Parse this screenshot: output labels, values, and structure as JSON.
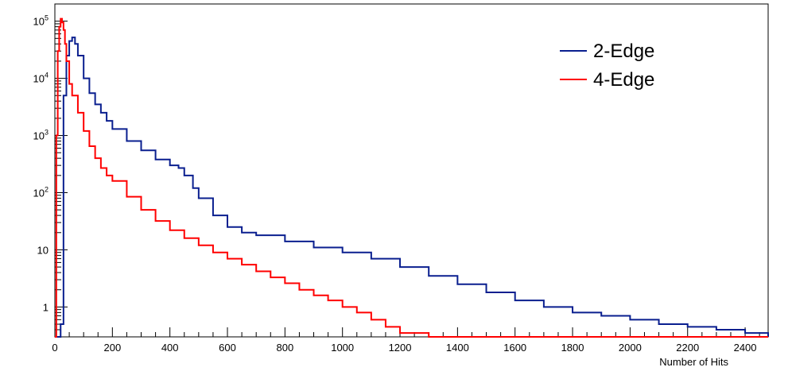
{
  "chart_data": {
    "type": "line",
    "title": "",
    "xlabel": "Number of Hits",
    "ylabel": "",
    "xlim": [
      0,
      2480
    ],
    "ylim": [
      0.3,
      200000
    ],
    "y_scale": "log",
    "grid": false,
    "legend_position": "top-right",
    "x_tick_labels": [
      "0",
      "200",
      "400",
      "600",
      "800",
      "1000",
      "1200",
      "1400",
      "1600",
      "1800",
      "2000",
      "2200",
      "2400"
    ],
    "y_tick_labels": [
      {
        "base": "10",
        "exp": "5",
        "value": 100000
      },
      {
        "base": "10",
        "exp": "4",
        "value": 10000
      },
      {
        "base": "10",
        "exp": "3",
        "value": 1000
      },
      {
        "base": "10",
        "exp": "2",
        "value": 100
      },
      {
        "base": "10",
        "exp": "",
        "value": 10
      },
      {
        "base": "1",
        "exp": "",
        "value": 1
      }
    ],
    "series": [
      {
        "name": "2-Edge",
        "color": "#0a1f8f",
        "x": [
          0,
          10,
          20,
          30,
          40,
          50,
          60,
          70,
          80,
          100,
          120,
          140,
          160,
          180,
          200,
          250,
          300,
          350,
          400,
          430,
          450,
          480,
          500,
          550,
          600,
          650,
          700,
          800,
          900,
          1000,
          1100,
          1200,
          1300,
          1400,
          1500,
          1600,
          1700,
          1800,
          1900,
          2000,
          2100,
          2200,
          2300,
          2400,
          2480
        ],
        "y": [
          0.3,
          0.3,
          0.5,
          5000,
          25000,
          45000,
          52000,
          40000,
          25000,
          10000,
          5500,
          3500,
          2500,
          1800,
          1300,
          800,
          550,
          380,
          300,
          270,
          200,
          120,
          80,
          40,
          25,
          20,
          18,
          14,
          11,
          9,
          7,
          5,
          3.5,
          2.5,
          1.8,
          1.3,
          1.0,
          0.8,
          0.7,
          0.6,
          0.5,
          0.45,
          0.4,
          0.35,
          0.3
        ]
      },
      {
        "name": "4-Edge",
        "color": "#ff0000",
        "x": [
          0,
          5,
          10,
          15,
          20,
          25,
          30,
          35,
          40,
          50,
          60,
          80,
          100,
          120,
          140,
          160,
          180,
          200,
          250,
          300,
          350,
          400,
          450,
          500,
          550,
          600,
          650,
          700,
          750,
          800,
          850,
          900,
          950,
          1000,
          1050,
          1100,
          1150,
          1200,
          1300,
          1500,
          2480
        ],
        "y": [
          0.3,
          1000,
          30000,
          80000,
          110000,
          95000,
          70000,
          40000,
          20000,
          8000,
          5000,
          2500,
          1200,
          650,
          400,
          270,
          200,
          160,
          85,
          50,
          32,
          22,
          16,
          12,
          9,
          7,
          5.5,
          4.2,
          3.3,
          2.6,
          2.0,
          1.6,
          1.3,
          1.0,
          0.8,
          0.6,
          0.45,
          0.35,
          0.3,
          0.3,
          0.3
        ]
      }
    ]
  }
}
